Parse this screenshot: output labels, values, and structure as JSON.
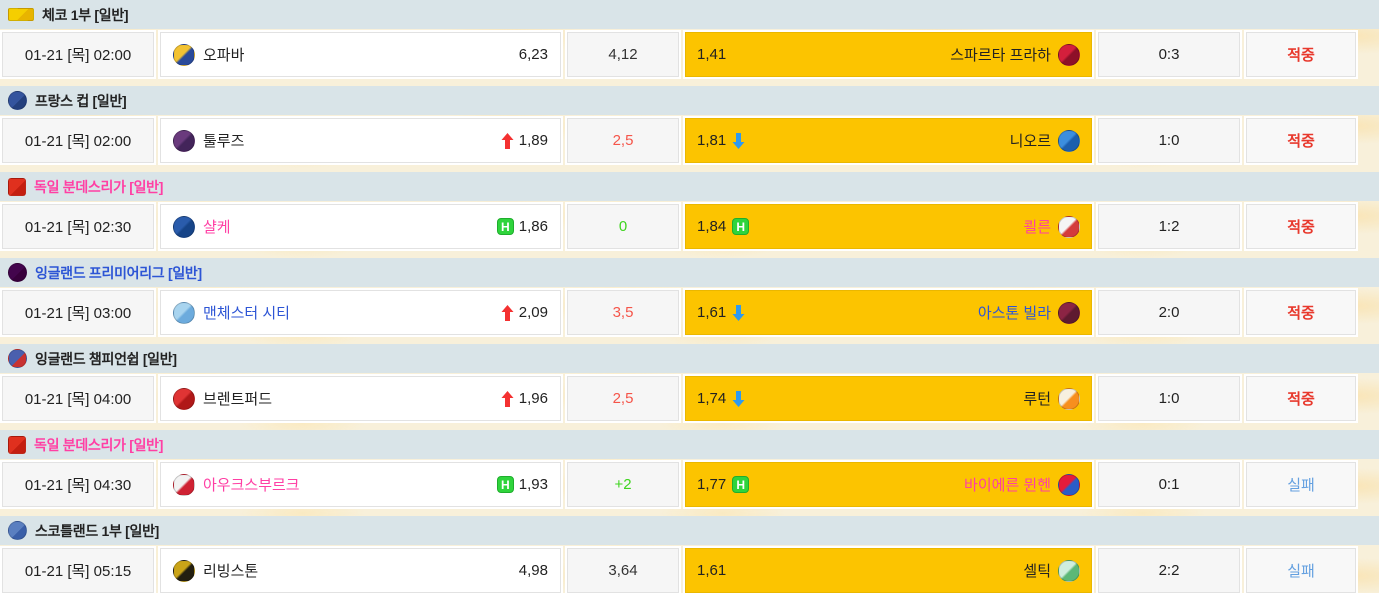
{
  "colors": {
    "page_bg": "#f8f0da",
    "band_bg": "#d9e4e8",
    "cell_bg": "#f6f6f6",
    "team_cell_bg": "#ffffff",
    "away_cell_yellow": "#fcc400",
    "hit_red": "#e8392d",
    "fail_blue": "#64a0e0",
    "line_red": "#f5554a",
    "line_green": "#3fd41f",
    "team_pink": "#ff3fa4",
    "team_blue": "#2d55d5",
    "up_arrow_red": "#f43131",
    "down_arrow_blue": "#2e9af0",
    "h_badge_green": "#2fd43c"
  },
  "blocks": [
    {
      "league": {
        "name": "체코 1부 [일반]",
        "color": "#222222",
        "icon": {
          "name": "czech-league-logo-icon",
          "shape": "rect",
          "colors": [
            "#f5ce00",
            "#e8b400"
          ]
        }
      },
      "match": {
        "time": "01-21 [목] 02:00",
        "home": {
          "name": "오파바",
          "color": "#222222",
          "logo": [
            "#f2c233",
            "#2a4a9a"
          ]
        },
        "home_odds": {
          "value": "6,23",
          "marker": ""
        },
        "line": {
          "value": "4,12",
          "tone": "default"
        },
        "away_odds": {
          "value": "1,41",
          "marker": ""
        },
        "away": {
          "name": "스파르타 프라하",
          "color": "#222222",
          "logo": [
            "#d41f3c",
            "#8e1028"
          ]
        },
        "score": "0:3",
        "status": {
          "label": "적중",
          "type": "hit"
        }
      }
    },
    {
      "league": {
        "name": "프랑스 컵 [일반]",
        "color": "#222222",
        "icon": {
          "name": "france-cup-logo-icon",
          "shape": "circle",
          "colors": [
            "#34549e",
            "#24407e"
          ]
        }
      },
      "match": {
        "time": "01-21 [목] 02:00",
        "home": {
          "name": "툴루즈",
          "color": "#222222",
          "logo": [
            "#6a3a7d",
            "#43245a"
          ]
        },
        "home_odds": {
          "value": "1,89",
          "marker": "up"
        },
        "line": {
          "value": "2,5",
          "tone": "red"
        },
        "away_odds": {
          "value": "1,81",
          "marker": "down"
        },
        "away": {
          "name": "니오르",
          "color": "#222222",
          "logo": [
            "#3c8ede",
            "#1d5fae"
          ]
        },
        "score": "1:0",
        "status": {
          "label": "적중",
          "type": "hit"
        }
      }
    },
    {
      "league": {
        "name": "독일 분데스리가 [일반]",
        "color": "#ff3fa4",
        "icon": {
          "name": "bundesliga-logo-icon",
          "shape": "square",
          "colors": [
            "#e0301e",
            "#c41f10"
          ]
        }
      },
      "match": {
        "time": "01-21 [목] 02:30",
        "home": {
          "name": "샬케",
          "color": "#ff3fa4",
          "logo": [
            "#2a5cac",
            "#164488"
          ]
        },
        "home_odds": {
          "value": "1,86",
          "marker": "h"
        },
        "line": {
          "value": "0",
          "tone": "green"
        },
        "away_odds": {
          "value": "1,84",
          "marker": "h"
        },
        "away": {
          "name": "쾰른",
          "color": "#ff3fa4",
          "logo": [
            "#f5f5f5",
            "#d43c3c"
          ]
        },
        "score": "1:2",
        "status": {
          "label": "적중",
          "type": "hit"
        }
      }
    },
    {
      "league": {
        "name": "잉글랜드 프리미어리그 [일반]",
        "color": "#2d55d5",
        "icon": {
          "name": "premier-league-logo-icon",
          "shape": "circle",
          "colors": [
            "#43054d",
            "#38003c"
          ]
        }
      },
      "match": {
        "time": "01-21 [목] 03:00",
        "home": {
          "name": "맨체스터 시티",
          "color": "#2d55d5",
          "logo": [
            "#a8d4ef",
            "#6cabdd"
          ]
        },
        "home_odds": {
          "value": "2,09",
          "marker": "up"
        },
        "line": {
          "value": "3,5",
          "tone": "red"
        },
        "away_odds": {
          "value": "1,61",
          "marker": "down"
        },
        "away": {
          "name": "아스톤 빌라",
          "color": "#2d55d5",
          "logo": [
            "#8c2444",
            "#5e1a30"
          ]
        },
        "score": "2:0",
        "status": {
          "label": "적중",
          "type": "hit"
        }
      }
    },
    {
      "league": {
        "name": "잉글랜드 챔피언쉽 [일반]",
        "color": "#222222",
        "icon": {
          "name": "championship-logo-icon",
          "shape": "circle",
          "colors": [
            "#4a5fae",
            "#c83232"
          ]
        }
      },
      "match": {
        "time": "01-21 [목] 04:00",
        "home": {
          "name": "브렌트퍼드",
          "color": "#222222",
          "logo": [
            "#e03434",
            "#b01818"
          ]
        },
        "home_odds": {
          "value": "1,96",
          "marker": "up"
        },
        "line": {
          "value": "2,5",
          "tone": "red"
        },
        "away_odds": {
          "value": "1,74",
          "marker": "down"
        },
        "away": {
          "name": "루턴",
          "color": "#222222",
          "logo": [
            "#f7f0e0",
            "#f78f1e"
          ]
        },
        "score": "1:0",
        "status": {
          "label": "적중",
          "type": "hit"
        }
      }
    },
    {
      "league": {
        "name": "독일 분데스리가 [일반]",
        "color": "#ff3fa4",
        "icon": {
          "name": "bundesliga-logo-icon",
          "shape": "square",
          "colors": [
            "#e0301e",
            "#c41f10"
          ]
        }
      },
      "match": {
        "time": "01-21 [목] 04:30",
        "home": {
          "name": "아우크스부르크",
          "color": "#ff3fa4",
          "logo": [
            "#f2f2f2",
            "#cf2233"
          ]
        },
        "home_odds": {
          "value": "1,93",
          "marker": "h"
        },
        "line": {
          "value": "+2",
          "tone": "green"
        },
        "away_odds": {
          "value": "1,77",
          "marker": "h"
        },
        "away": {
          "name": "바이에른 뮌헨",
          "color": "#ff3fa4",
          "logo": [
            "#e41b3c",
            "#2a5cc8"
          ]
        },
        "score": "0:1",
        "status": {
          "label": "실패",
          "type": "fail"
        }
      }
    },
    {
      "league": {
        "name": "스코틀랜드 1부 [일반]",
        "color": "#222222",
        "icon": {
          "name": "spfl-logo-icon",
          "shape": "circle",
          "colors": [
            "#5a7fc0",
            "#3a5fa8"
          ]
        }
      },
      "match": {
        "time": "01-21 [목] 05:15",
        "home": {
          "name": "리빙스톤",
          "color": "#222222",
          "logo": [
            "#caa418",
            "#231f10"
          ]
        },
        "home_odds": {
          "value": "4,98",
          "marker": ""
        },
        "line": {
          "value": "3,64",
          "tone": "default"
        },
        "away_odds": {
          "value": "1,61",
          "marker": ""
        },
        "away": {
          "name": "셀틱",
          "color": "#222222",
          "logo": [
            "#cfeedd",
            "#5cb877"
          ]
        },
        "score": "2:2",
        "status": {
          "label": "실패",
          "type": "fail"
        }
      }
    }
  ]
}
